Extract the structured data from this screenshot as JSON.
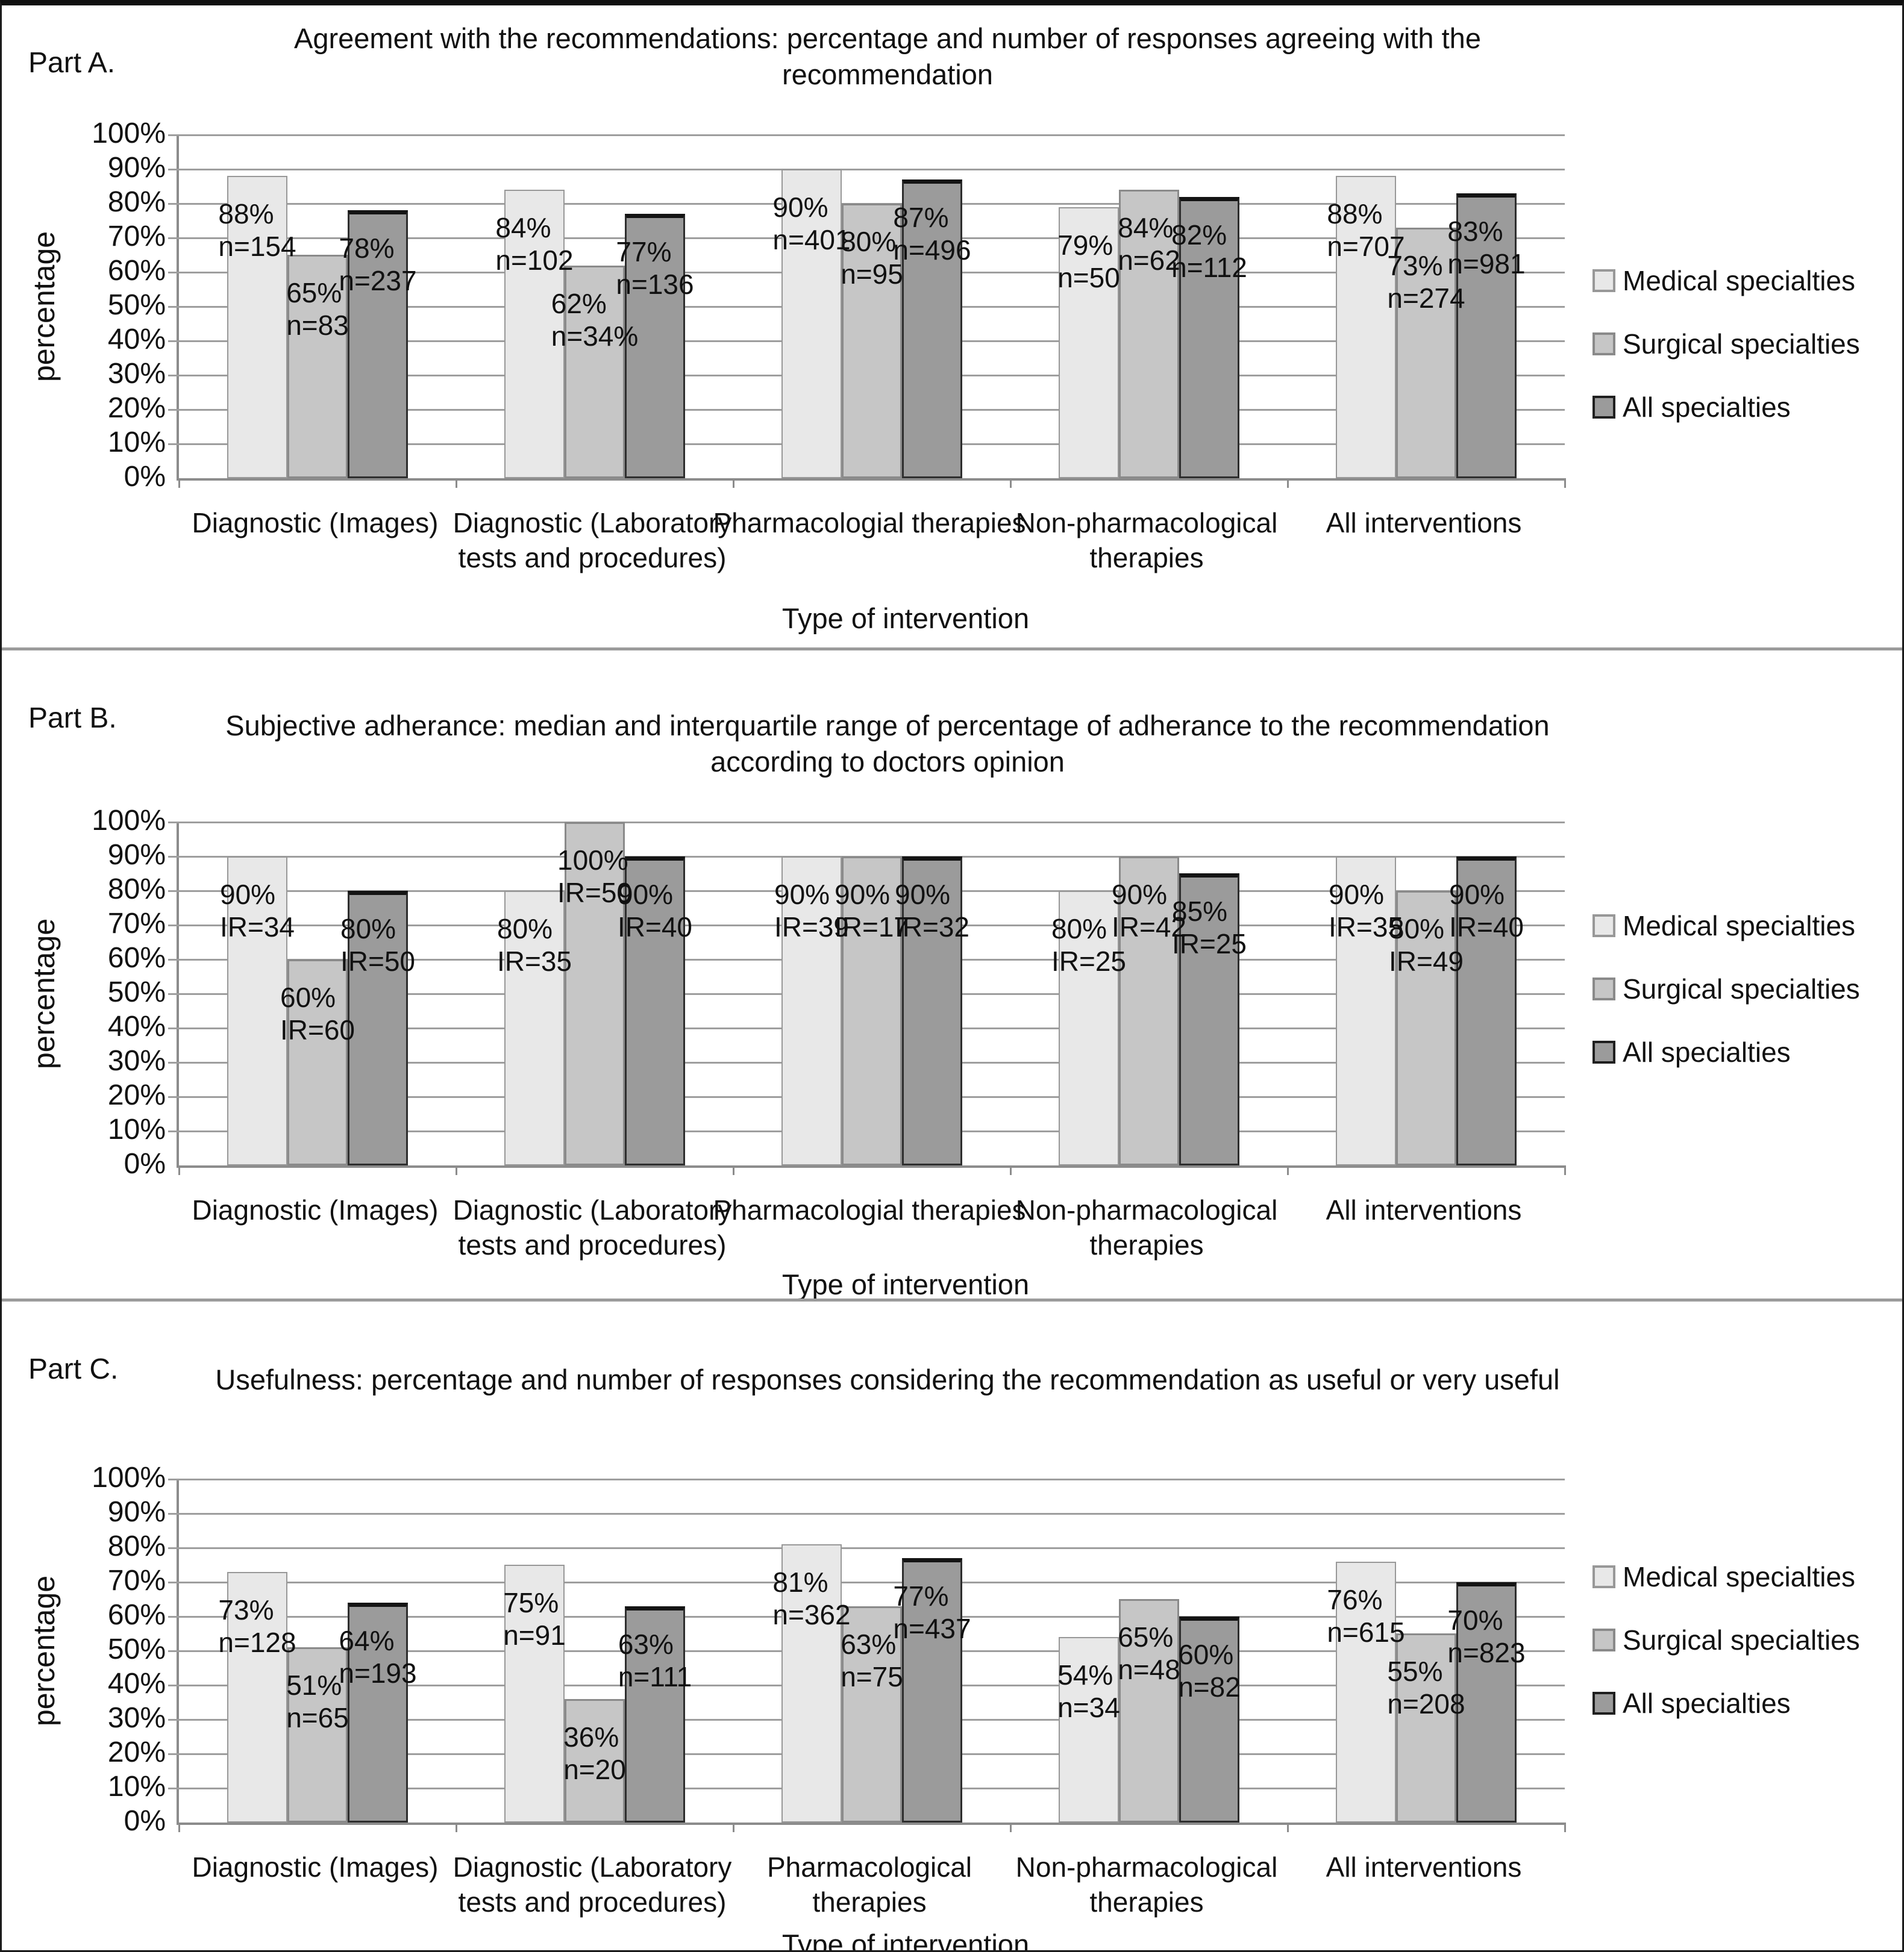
{
  "figure": {
    "y_axis_label": "percentage",
    "x_axis_label": "Type of intervention",
    "y_ticks": [
      "0%",
      "10%",
      "20%",
      "30%",
      "40%",
      "50%",
      "60%",
      "70%",
      "80%",
      "90%",
      "100%"
    ],
    "legend": [
      {
        "label": "Medical specialties",
        "color": "#e8e8e8",
        "border": "#989898"
      },
      {
        "label": "Surgical specialties",
        "color": "#c6c6c6",
        "border": "#8a8a8a"
      },
      {
        "label": "All specialties",
        "color": "#9b9b9b",
        "border": "#1f1f1f"
      }
    ]
  },
  "chart_data": [
    {
      "part": "Part A.",
      "type": "bar",
      "title": "Agreement with the recommendations: percentage and number of responses agreeing with the recommendation",
      "ylim": [
        0,
        100
      ],
      "grid": true,
      "legend_position": "right",
      "categories": [
        "Diagnostic (Images)",
        "Diagnostic (Laboratory tests and procedures)",
        "Pharmacologial therapies",
        "Non-pharmacological therapies",
        "All interventions"
      ],
      "series": [
        {
          "name": "Medical specialties",
          "values": [
            88,
            84,
            90,
            79,
            88
          ],
          "bar_labels": [
            [
              "88%",
              "n=154"
            ],
            [
              "84%",
              "n=102"
            ],
            [
              "90%",
              "n=401"
            ],
            [
              "79%",
              "n=50"
            ],
            [
              "88%",
              "n=707"
            ]
          ]
        },
        {
          "name": "Surgical specialties",
          "values": [
            65,
            62,
            80,
            84,
            73
          ],
          "bar_labels": [
            [
              "65%",
              "n=83"
            ],
            [
              "62%",
              "n=34%"
            ],
            [
              "80%",
              "n=95"
            ],
            [
              "84%",
              "n=62"
            ],
            [
              "73%",
              "n=274"
            ]
          ]
        },
        {
          "name": "All specialties",
          "values": [
            78,
            77,
            87,
            82,
            83
          ],
          "bar_labels": [
            [
              "78%",
              "n=237"
            ],
            [
              "77%",
              "n=136"
            ],
            [
              "87%",
              "n=496"
            ],
            [
              "82%",
              "n=112"
            ],
            [
              "83%",
              "n=981"
            ]
          ]
        }
      ]
    },
    {
      "part": "Part B.",
      "type": "bar",
      "title": "Subjective adherance: median and interquartile range of percentage of adherance to the recommendation according to doctors opinion",
      "ylim": [
        0,
        100
      ],
      "grid": true,
      "legend_position": "right",
      "categories": [
        "Diagnostic (Images)",
        "Diagnostic (Laboratory tests and procedures)",
        "Pharmacologial therapies",
        "Non-pharmacological therapies",
        "All interventions"
      ],
      "series": [
        {
          "name": "Medical specialties",
          "values": [
            90,
            80,
            90,
            80,
            90
          ],
          "bar_labels": [
            [
              "90%",
              "IR=34"
            ],
            [
              "80%",
              "IR=35"
            ],
            [
              "90%",
              "IR=39"
            ],
            [
              "80%",
              "IR=25"
            ],
            [
              "90%",
              "IR=35"
            ]
          ]
        },
        {
          "name": "Surgical specialties",
          "values": [
            60,
            100,
            90,
            90,
            80
          ],
          "bar_labels": [
            [
              "60%",
              "IR=60"
            ],
            [
              "100%",
              "IR=50"
            ],
            [
              "90%",
              "IR=17"
            ],
            [
              "90%",
              "IR=42"
            ],
            [
              "80%",
              "IR=49"
            ]
          ]
        },
        {
          "name": "All specialties",
          "values": [
            80,
            90,
            90,
            85,
            90
          ],
          "bar_labels": [
            [
              "80%",
              "IR=50"
            ],
            [
              "90%",
              "IR=40"
            ],
            [
              "90%",
              "IR=32"
            ],
            [
              "85%",
              "IR=25"
            ],
            [
              "90%",
              "IR=40"
            ]
          ]
        }
      ]
    },
    {
      "part": "Part C.",
      "type": "bar",
      "title": "Usefulness: percentage and number of responses considering the recommendation as useful or very useful",
      "ylim": [
        0,
        100
      ],
      "grid": true,
      "legend_position": "right",
      "categories": [
        "Diagnostic (Images)",
        "Diagnostic (Laboratory tests and procedures)",
        "Pharmacological therapies",
        "Non-pharmacological therapies",
        "All interventions"
      ],
      "series": [
        {
          "name": "Medical specialties",
          "values": [
            73,
            75,
            81,
            54,
            76
          ],
          "bar_labels": [
            [
              "73%",
              "n=128"
            ],
            [
              "75%",
              "n=91"
            ],
            [
              "81%",
              "n=362"
            ],
            [
              "54%",
              "n=34"
            ],
            [
              "76%",
              "n=615"
            ]
          ]
        },
        {
          "name": "Surgical specialties",
          "values": [
            51,
            36,
            63,
            65,
            55
          ],
          "bar_labels": [
            [
              "51%",
              "n=65"
            ],
            [
              "36%",
              "n=20"
            ],
            [
              "63%",
              "n=75"
            ],
            [
              "65%",
              "n=48"
            ],
            [
              "55%",
              "n=208"
            ]
          ]
        },
        {
          "name": "All specialties",
          "values": [
            64,
            63,
            77,
            60,
            70
          ],
          "bar_labels": [
            [
              "64%",
              "n=193"
            ],
            [
              "63%",
              "n=111"
            ],
            [
              "77%",
              "n=437"
            ],
            [
              "60%",
              "n=82"
            ],
            [
              "70%",
              "n=823"
            ]
          ]
        }
      ]
    }
  ]
}
